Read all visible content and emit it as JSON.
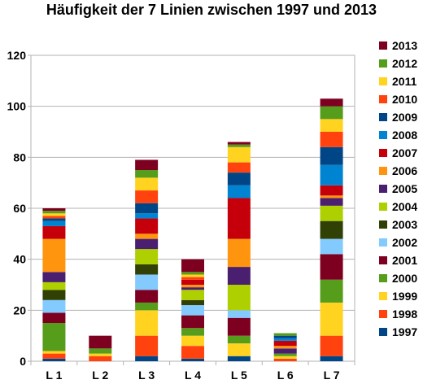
{
  "chart_data": {
    "type": "bar",
    "stacked": true,
    "title": "Häufigkeit der 7 Linien zwischen 1997 und 2013",
    "xlabel": "",
    "ylabel": "",
    "ylim": [
      0,
      120
    ],
    "yticks": [
      0,
      20,
      40,
      60,
      80,
      100,
      120
    ],
    "grid": true,
    "legend_position": "right",
    "categories": [
      "L 1",
      "L 2",
      "L 3",
      "L 4",
      "L 5",
      "L 6",
      "L 7"
    ],
    "series": [
      {
        "name": "1997",
        "color": "#004586",
        "values": [
          1,
          0,
          2,
          1,
          2,
          0,
          2
        ]
      },
      {
        "name": "1998",
        "color": "#ff420e",
        "values": [
          2,
          2,
          8,
          5,
          0,
          1,
          8
        ]
      },
      {
        "name": "1999",
        "color": "#ffd320",
        "values": [
          1,
          1,
          10,
          4,
          5,
          1,
          13
        ]
      },
      {
        "name": "2000",
        "color": "#579d1c",
        "values": [
          11,
          2,
          3,
          3,
          3,
          1,
          9
        ]
      },
      {
        "name": "2001",
        "color": "#7e0021",
        "values": [
          4,
          5,
          5,
          5,
          7,
          0,
          10
        ]
      },
      {
        "name": "2002",
        "color": "#83caff",
        "values": [
          5,
          0,
          6,
          4,
          3,
          0,
          6
        ]
      },
      {
        "name": "2003",
        "color": "#314004",
        "values": [
          4,
          0,
          4,
          2,
          0,
          0,
          7
        ]
      },
      {
        "name": "2004",
        "color": "#aecf00",
        "values": [
          3,
          0,
          6,
          4,
          10,
          0,
          6
        ]
      },
      {
        "name": "2005",
        "color": "#4b1f6f",
        "values": [
          4,
          0,
          4,
          1,
          7,
          2,
          3
        ]
      },
      {
        "name": "2006",
        "color": "#ff950e",
        "values": [
          13,
          0,
          2,
          1,
          11,
          1,
          1
        ]
      },
      {
        "name": "2007",
        "color": "#c5000b",
        "values": [
          5,
          0,
          6,
          2,
          16,
          2,
          4
        ]
      },
      {
        "name": "2008",
        "color": "#0084d1",
        "values": [
          2,
          0,
          2,
          0,
          5,
          1,
          8
        ]
      },
      {
        "name": "2009",
        "color": "#004586",
        "values": [
          1,
          0,
          4,
          0,
          5,
          1,
          7
        ]
      },
      {
        "name": "2010",
        "color": "#ff420e",
        "values": [
          1,
          0,
          5,
          1,
          4,
          0,
          6
        ]
      },
      {
        "name": "2011",
        "color": "#ffd320",
        "values": [
          1,
          0,
          5,
          1,
          6,
          0,
          5
        ]
      },
      {
        "name": "2012",
        "color": "#579d1c",
        "values": [
          1,
          0,
          3,
          1,
          1,
          1,
          5
        ]
      },
      {
        "name": "2013",
        "color": "#7e0021",
        "values": [
          1,
          0,
          4,
          5,
          1,
          0,
          3
        ]
      }
    ]
  }
}
